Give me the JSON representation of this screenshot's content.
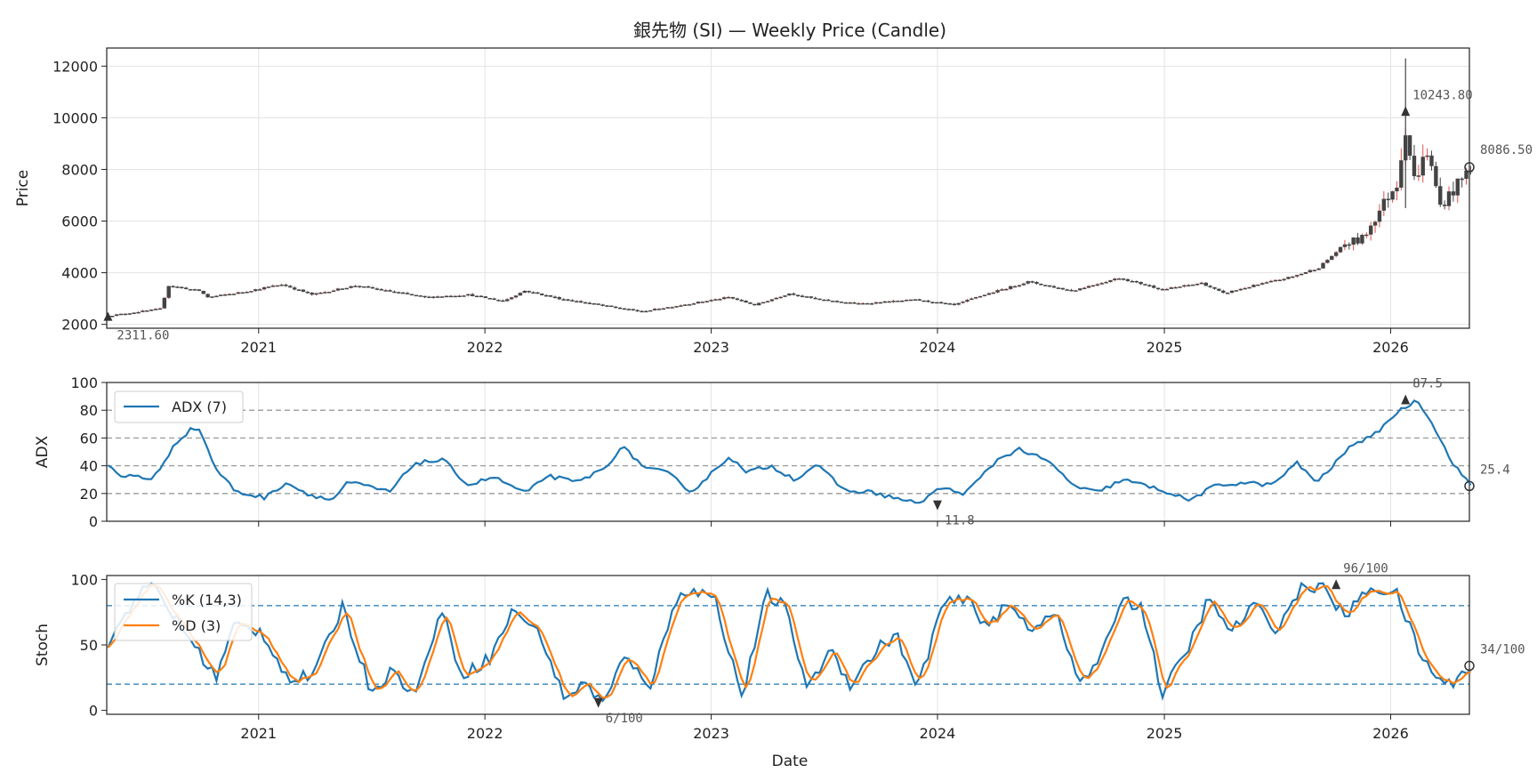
{
  "chart_data": [
    {
      "type": "candlestick",
      "title": "銀先物 (SI) — Weekly Price (Candle)",
      "xlabel": "",
      "ylabel": "Price",
      "x_range": [
        "2020-05-01",
        "2026-05-08"
      ],
      "ylim": [
        1850,
        12700
      ],
      "y_ticks": [
        2000,
        4000,
        6000,
        8000,
        10000,
        12000
      ],
      "x_tick_labels": [
        "2021",
        "2022",
        "2023",
        "2024",
        "2025",
        "2026"
      ],
      "grid": true,
      "anchors": [
        [
          "2020-05-03",
          2330
        ],
        [
          "2020-07-26",
          2600
        ],
        [
          "2020-08-09",
          3500
        ],
        [
          "2020-09-27",
          3300
        ],
        [
          "2020-10-11",
          3050
        ],
        [
          "2020-12-06",
          3250
        ],
        [
          "2021-02-07",
          3550
        ],
        [
          "2021-03-28",
          3150
        ],
        [
          "2021-06-06",
          3500
        ],
        [
          "2021-09-26",
          3050
        ],
        [
          "2021-12-05",
          3150
        ],
        [
          "2022-01-30",
          2900
        ],
        [
          "2022-03-06",
          3300
        ],
        [
          "2022-05-01",
          3000
        ],
        [
          "2022-07-31",
          2650
        ],
        [
          "2022-09-11",
          2500
        ],
        [
          "2022-11-27",
          2800
        ],
        [
          "2023-01-29",
          3050
        ],
        [
          "2023-03-12",
          2750
        ],
        [
          "2023-05-07",
          3200
        ],
        [
          "2023-06-25",
          2950
        ],
        [
          "2023-08-27",
          2800
        ],
        [
          "2023-11-26",
          2950
        ],
        [
          "2024-01-28",
          2750
        ],
        [
          "2024-03-10",
          3100
        ],
        [
          "2024-05-26",
          3650
        ],
        [
          "2024-08-04",
          3300
        ],
        [
          "2024-10-20",
          3800
        ],
        [
          "2024-12-29",
          3350
        ],
        [
          "2025-03-02",
          3600
        ],
        [
          "2025-04-06",
          3200
        ],
        [
          "2025-05-25",
          3500
        ],
        [
          "2025-07-27",
          3850
        ],
        [
          "2025-09-07",
          4200
        ],
        [
          "2025-10-19",
          5100
        ],
        [
          "2025-11-16",
          5300
        ],
        [
          "2025-12-21",
          6700
        ],
        [
          "2026-01-11",
          7500
        ],
        [
          "2026-01-25",
          9600
        ],
        [
          "2026-02-08",
          7600
        ],
        [
          "2026-03-01",
          8700
        ],
        [
          "2026-03-22",
          6600
        ],
        [
          "2026-04-19",
          7400
        ],
        [
          "2026-05-10",
          8086.5
        ]
      ],
      "annotations": [
        {
          "text": "2311.60",
          "x": "2020-05-03",
          "y": 2311.6,
          "marker": "triangle-up"
        },
        {
          "text": "10243.80",
          "x": "2026-01-25",
          "y": 10243.8,
          "marker": "triangle-up"
        },
        {
          "text": "8086.50",
          "x": "2026-05-10",
          "y": 8086.5,
          "marker": "circle"
        }
      ],
      "colors": {
        "candle": "#444444",
        "up_wick": "#e05050",
        "annotation": "#555555"
      }
    },
    {
      "type": "line",
      "xlabel": "",
      "ylabel": "ADX",
      "ylim": [
        0,
        100
      ],
      "y_ticks": [
        0,
        20,
        40,
        60,
        80,
        100
      ],
      "reference_lines": [
        20,
        40,
        60,
        80
      ],
      "legend": "upper-left",
      "series": [
        {
          "name": "ADX (7)",
          "color": "#1f77b4"
        }
      ],
      "anchors": [
        [
          "2020-05-03",
          40
        ],
        [
          "2020-05-24",
          32
        ],
        [
          "2020-06-21",
          33
        ],
        [
          "2020-07-12",
          30
        ],
        [
          "2020-08-02",
          38
        ],
        [
          "2020-08-23",
          56
        ],
        [
          "2020-09-20",
          66
        ],
        [
          "2020-10-04",
          67
        ],
        [
          "2020-11-01",
          38
        ],
        [
          "2020-12-06",
          21
        ],
        [
          "2021-01-24",
          17
        ],
        [
          "2021-02-28",
          28
        ],
        [
          "2021-04-04",
          20
        ],
        [
          "2021-05-16",
          15
        ],
        [
          "2021-06-13",
          28
        ],
        [
          "2021-07-18",
          25
        ],
        [
          "2021-08-22",
          21
        ],
        [
          "2021-10-03",
          42
        ],
        [
          "2021-11-21",
          44
        ],
        [
          "2022-01-02",
          26
        ],
        [
          "2022-02-13",
          32
        ],
        [
          "2022-04-10",
          20
        ],
        [
          "2022-05-15",
          33
        ],
        [
          "2022-07-03",
          28
        ],
        [
          "2022-08-21",
          38
        ],
        [
          "2022-09-18",
          54
        ],
        [
          "2022-10-30",
          38
        ],
        [
          "2022-12-04",
          35
        ],
        [
          "2023-01-15",
          21
        ],
        [
          "2023-03-19",
          47
        ],
        [
          "2023-04-16",
          35
        ],
        [
          "2023-05-28",
          40
        ],
        [
          "2023-07-09",
          30
        ],
        [
          "2023-08-13",
          41
        ],
        [
          "2023-10-01",
          22
        ],
        [
          "2023-11-12",
          21
        ],
        [
          "2024-01-21",
          14
        ],
        [
          "2024-01-28",
          11.8
        ],
        [
          "2024-03-10",
          24
        ],
        [
          "2024-04-21",
          20
        ],
        [
          "2024-06-16",
          45
        ],
        [
          "2024-07-21",
          52
        ],
        [
          "2024-09-08",
          43
        ],
        [
          "2024-10-27",
          24
        ],
        [
          "2024-12-01",
          21
        ],
        [
          "2025-01-12",
          30
        ],
        [
          "2025-03-23",
          22
        ],
        [
          "2025-05-04",
          15
        ],
        [
          "2025-06-15",
          25
        ],
        [
          "2025-08-03",
          28
        ],
        [
          "2025-09-21",
          26
        ],
        [
          "2025-11-02",
          42
        ],
        [
          "2025-12-07",
          28
        ],
        [
          "2026-02-08",
          57
        ],
        [
          "2026-03-08",
          60
        ],
        [
          "2026-04-19",
          78
        ],
        [
          "2026-05-24",
          87.5
        ],
        [
          "2026-06-14",
          75
        ],
        [
          "2026-07-19",
          45
        ],
        [
          "2026-08-23",
          25.4
        ]
      ],
      "annotations": [
        {
          "text": "87.5",
          "x": "2026-01-25",
          "y": 87.5,
          "marker": "triangle-up"
        },
        {
          "text": "11.8",
          "x": "2024-01-01",
          "y": 11.8,
          "marker": "triangle-down"
        },
        {
          "text": "25.4",
          "x": "2026-05-10",
          "y": 25.4,
          "marker": "circle"
        }
      ]
    },
    {
      "type": "line",
      "xlabel": "Date",
      "ylabel": "Stoch",
      "ylim": [
        -3,
        103
      ],
      "y_ticks": [
        0,
        50,
        100
      ],
      "x_tick_labels": [
        "2021",
        "2022",
        "2023",
        "2024",
        "2025",
        "2026"
      ],
      "reference_lines": [
        20,
        80
      ],
      "legend": "upper-left",
      "series": [
        {
          "name": "%K (14,3)",
          "color": "#1f77b4"
        },
        {
          "name": "%D (3)",
          "color": "#ff7f0e"
        }
      ],
      "anchors": [
        [
          "2020-05-03",
          50
        ],
        [
          "2020-06-28",
          88
        ],
        [
          "2020-08-02",
          95
        ],
        [
          "2020-10-25",
          48
        ],
        [
          "2020-12-06",
          25
        ],
        [
          "2021-01-10",
          65
        ],
        [
          "2021-03-07",
          60
        ],
        [
          "2021-05-02",
          22
        ],
        [
          "2021-06-20",
          28
        ],
        [
          "2021-08-15",
          80
        ],
        [
          "2021-10-10",
          15
        ],
        [
          "2021-11-21",
          30
        ],
        [
          "2022-01-09",
          12
        ],
        [
          "2022-02-27",
          78
        ],
        [
          "2022-04-10",
          27
        ],
        [
          "2022-06-05",
          40
        ],
        [
          "2022-07-24",
          78
        ],
        [
          "2022-09-18",
          55
        ],
        [
          "2022-10-30",
          10
        ],
        [
          "2022-12-11",
          20
        ],
        [
          "2023-01-22",
          6
        ],
        [
          "2023-02-26",
          40
        ],
        [
          "2023-04-23",
          20
        ],
        [
          "2023-06-18",
          92
        ],
        [
          "2023-08-27",
          88
        ],
        [
          "2023-10-22",
          10
        ],
        [
          "2023-12-10",
          88
        ],
        [
          "2024-01-14",
          80
        ],
        [
          "2024-03-03",
          15
        ],
        [
          "2024-04-14",
          48
        ],
        [
          "2024-05-26",
          20
        ],
        [
          "2024-07-21",
          48
        ],
        [
          "2024-08-25",
          58
        ],
        [
          "2024-10-06",
          15
        ],
        [
          "2024-11-24",
          80
        ],
        [
          "2025-01-12",
          85
        ],
        [
          "2025-02-23",
          65
        ],
        [
          "2025-04-06",
          80
        ],
        [
          "2025-05-25",
          62
        ],
        [
          "2025-07-06",
          78
        ],
        [
          "2025-08-24",
          22
        ],
        [
          "2025-10-05",
          35
        ],
        [
          "2025-11-16",
          85
        ],
        [
          "2025-12-28",
          80
        ],
        [
          "2026-02-08",
          13
        ],
        [
          "2026-03-29",
          45
        ],
        [
          "2026-05-10",
          84
        ],
        [
          "2026-06-28",
          60
        ],
        [
          "2026-08-09",
          80
        ],
        [
          "2026-09-27",
          62
        ],
        [
          "2026-11-08",
          92
        ],
        [
          "2026-12-20",
          96
        ],
        [
          "2027-02-07",
          72
        ],
        [
          "2027-04-04",
          95
        ],
        [
          "2027-05-23",
          88
        ],
        [
          "2027-07-11",
          40
        ],
        [
          "2027-08-29",
          18
        ],
        [
          "2027-10-17",
          34
        ]
      ],
      "annotations": [
        {
          "text": "96/100",
          "x": "2025-10-05",
          "y": 96,
          "marker": "triangle-up"
        },
        {
          "text": "6/100",
          "x": "2022-07-03",
          "y": 6,
          "marker": "triangle-down"
        },
        {
          "text": "34/100",
          "x": "2026-05-10",
          "y": 34,
          "marker": "circle"
        }
      ]
    }
  ]
}
